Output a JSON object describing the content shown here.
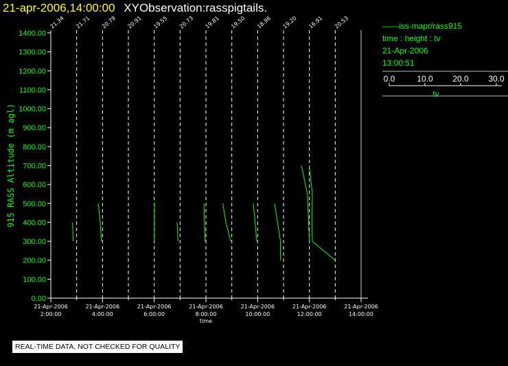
{
  "header": {
    "date": "21-apr-2006,14:00:00",
    "title": "XYObservation:rasspigtails."
  },
  "legend": {
    "series_label": "iss-mapr/rass915",
    "variables": "time : height : tv",
    "date": "21-Apr-2006",
    "time": "13:00:51",
    "scale_ticks": [
      "0.0",
      "10.0",
      "20.0",
      "30.0"
    ],
    "scale_label": "tv"
  },
  "footer": {
    "quality_note": "REAL-TIME DATA, NOT CHECKED FOR QUALITY"
  },
  "colors": {
    "series": "#00ff00",
    "axis": "#ffffff",
    "background": "#000000",
    "date_text": "#ffff00"
  },
  "chart_data": {
    "type": "line",
    "xlabel": "time",
    "ylabel": "915 RASS Altitude (m agl)",
    "xlim": [
      "2006-04-21T02:00",
      "2006-04-21T14:00"
    ],
    "ylim": [
      0,
      1400
    ],
    "x_ticks": [
      {
        "date": "21-Apr-2006",
        "time": "2:00:00"
      },
      {
        "date": "21-Apr-2006",
        "time": "4:00:00"
      },
      {
        "date": "21-Apr-2006",
        "time": "6:00:00"
      },
      {
        "date": "21-Apr-2006",
        "time": "8:00:00"
      },
      {
        "date": "21-Apr-2006",
        "time": "10:00:00"
      },
      {
        "date": "21-Apr-2006",
        "time": "12:00:00"
      },
      {
        "date": "21-Apr-2006",
        "time": "14:00:00"
      }
    ],
    "y_ticks": [
      "0.00",
      "100.00",
      "200.00",
      "300.00",
      "400.00",
      "500.00",
      "600.00",
      "700.00",
      "800.00",
      "900.00",
      "1000.00",
      "1100.00",
      "1200.00",
      "1300.00",
      "1400.00"
    ],
    "profiles": [
      {
        "time": "2006-04-21T02:00",
        "label": "21.34",
        "points": []
      },
      {
        "time": "2006-04-21T03:00",
        "label": "21.71",
        "points": [
          [
            -4.2,
            400
          ],
          [
            -3.5,
            300
          ]
        ]
      },
      {
        "time": "2006-04-21T04:00",
        "label": "20.79",
        "points": [
          [
            -4.2,
            500
          ],
          [
            -2.3,
            400
          ],
          [
            -1.0,
            300
          ]
        ]
      },
      {
        "time": "2006-04-21T05:00",
        "label": "20.91",
        "points": []
      },
      {
        "time": "2006-04-21T06:00",
        "label": "19.55",
        "points": [
          [
            0.2,
            500
          ],
          [
            0.0,
            400
          ],
          [
            0.0,
            300
          ]
        ]
      },
      {
        "time": "2006-04-21T07:00",
        "label": "20.73",
        "points": [
          [
            -3.0,
            400
          ],
          [
            -2.0,
            300
          ]
        ]
      },
      {
        "time": "2006-04-21T08:00",
        "label": "19.81",
        "points": [
          [
            -2.0,
            500
          ],
          [
            -1.0,
            300
          ]
        ]
      },
      {
        "time": "2006-04-21T09:00",
        "label": "19.50",
        "points": [
          [
            -9.0,
            500
          ],
          [
            -6.0,
            400
          ],
          [
            -1.0,
            300
          ]
        ]
      },
      {
        "time": "2006-04-21T10:00",
        "label": "18.96",
        "points": [
          [
            -4.5,
            500
          ],
          [
            -2.5,
            400
          ],
          [
            -1.0,
            300
          ]
        ]
      },
      {
        "time": "2006-04-21T11:00",
        "label": "19.20",
        "points": [
          [
            -9.0,
            500
          ],
          [
            -6.0,
            400
          ],
          [
            -3.0,
            300
          ],
          [
            -3.0,
            200
          ]
        ]
      },
      {
        "time": "2006-04-21T12:00",
        "label": "16.91",
        "points": [
          [
            -8.0,
            700
          ],
          [
            -2.0,
            550
          ],
          [
            0.0,
            300
          ]
        ]
      },
      {
        "time": "2006-04-21T13:00",
        "label": "20.53",
        "points": [
          [
            -26.0,
            700
          ],
          [
            -23.0,
            550
          ],
          [
            -23.5,
            400
          ],
          [
            -23.0,
            300
          ],
          [
            0.0,
            200
          ]
        ]
      }
    ]
  }
}
